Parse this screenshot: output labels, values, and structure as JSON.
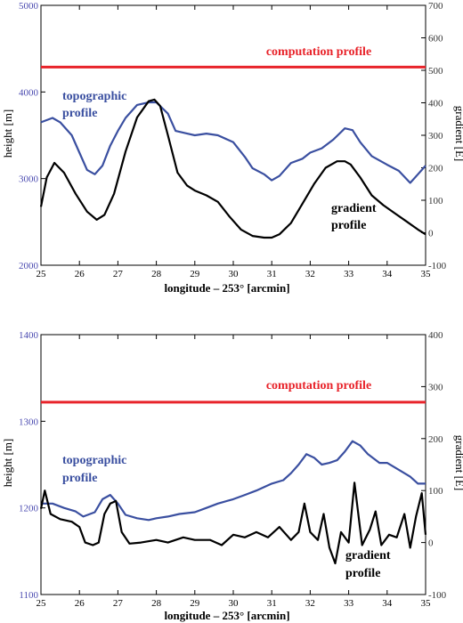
{
  "chart_data": [
    {
      "type": "line",
      "xlabel": "longitude – 253° [arcmin]",
      "ylabel_left": "height [m]",
      "ylabel_right": "gradient [E]",
      "xlim": [
        25,
        35
      ],
      "ylim_left": [
        2000,
        5000
      ],
      "ylim_right": [
        -100,
        700
      ],
      "x_ticks": [
        "25",
        "26",
        "27",
        "28",
        "29",
        "30",
        "31",
        "32",
        "33",
        "34",
        "35"
      ],
      "y_left_ticks": [
        "5000",
        "4000",
        "3000",
        "2000"
      ],
      "y_right_ticks": [
        "700",
        "600",
        "500",
        "400",
        "300",
        "200",
        "100",
        "0",
        "-100"
      ],
      "annotations": {
        "computation": "computation profile",
        "topo_line1": "topographic",
        "topo_line2": "profile",
        "grad_line1": "gradient",
        "grad_line2": "profile"
      },
      "colors": {
        "computation": "#e8232a",
        "topographic": "#3a4fa0",
        "gradient": "#000000"
      },
      "series": [
        {
          "axis": "right",
          "x": [
            25,
            35
          ],
          "values": [
            510,
            510
          ]
        },
        {
          "axis": "left",
          "x": [
            25,
            25.3,
            25.5,
            25.8,
            26.0,
            26.2,
            26.4,
            26.6,
            26.8,
            27.0,
            27.2,
            27.5,
            27.8,
            28.0,
            28.3,
            28.5,
            28.8,
            29.0,
            29.3,
            29.6,
            30.0,
            30.3,
            30.5,
            30.8,
            31.0,
            31.2,
            31.5,
            31.8,
            32.0,
            32.3,
            32.6,
            32.9,
            33.1,
            33.3,
            33.6,
            34.0,
            34.3,
            34.6,
            34.8,
            35.0
          ],
          "values": [
            3650,
            3700,
            3650,
            3500,
            3300,
            3100,
            3050,
            3150,
            3380,
            3550,
            3700,
            3850,
            3880,
            3880,
            3750,
            3550,
            3520,
            3500,
            3520,
            3500,
            3420,
            3250,
            3120,
            3050,
            2980,
            3030,
            3180,
            3230,
            3300,
            3350,
            3450,
            3580,
            3560,
            3420,
            3260,
            3160,
            3090,
            2950,
            3050,
            3150
          ]
        },
        {
          "axis": "right",
          "x": [
            25,
            25.15,
            25.35,
            25.6,
            25.9,
            26.2,
            26.45,
            26.65,
            26.9,
            27.2,
            27.5,
            27.8,
            27.95,
            28.1,
            28.3,
            28.55,
            28.8,
            29.0,
            29.3,
            29.6,
            29.9,
            30.2,
            30.5,
            30.8,
            31.0,
            31.2,
            31.5,
            31.8,
            32.1,
            32.4,
            32.7,
            32.9,
            33.05,
            33.3,
            33.6,
            33.9,
            34.2,
            34.5,
            34.8,
            35.0
          ],
          "values": [
            80,
            170,
            215,
            185,
            120,
            65,
            40,
            55,
            120,
            250,
            355,
            405,
            410,
            390,
            300,
            185,
            145,
            130,
            115,
            95,
            50,
            10,
            -10,
            -15,
            -15,
            -5,
            30,
            90,
            150,
            200,
            220,
            220,
            210,
            170,
            115,
            85,
            60,
            35,
            10,
            -5
          ]
        }
      ]
    },
    {
      "type": "line",
      "xlabel": "longitude – 253° [arcmin]",
      "ylabel_left": "height [m]",
      "ylabel_right": "gradient [E]",
      "xlim": [
        25,
        35
      ],
      "ylim_left": [
        1100,
        1400
      ],
      "ylim_right": [
        -100,
        400
      ],
      "x_ticks": [
        "25",
        "26",
        "27",
        "28",
        "29",
        "30",
        "31",
        "32",
        "33",
        "34",
        "35"
      ],
      "y_left_ticks": [
        "1400",
        "1300",
        "1200",
        "1100"
      ],
      "y_right_ticks": [
        "400",
        "300",
        "200",
        "100",
        "0",
        "-100"
      ],
      "annotations": {
        "computation": "computation profile",
        "topo_line1": "topographic",
        "topo_line2": "profile",
        "grad_line1": "gradient",
        "grad_line2": "profile"
      },
      "colors": {
        "computation": "#e8232a",
        "topographic": "#3a4fa0",
        "gradient": "#000000"
      },
      "series": [
        {
          "axis": "right",
          "x": [
            25,
            35
          ],
          "values": [
            270,
            270
          ]
        },
        {
          "axis": "left",
          "x": [
            25,
            25.3,
            25.6,
            25.9,
            26.1,
            26.4,
            26.6,
            26.8,
            27.0,
            27.2,
            27.5,
            27.8,
            28.0,
            28.3,
            28.6,
            29.0,
            29.3,
            29.6,
            30.0,
            30.3,
            30.6,
            31.0,
            31.3,
            31.5,
            31.7,
            31.9,
            32.1,
            32.3,
            32.5,
            32.7,
            32.9,
            33.1,
            33.3,
            33.5,
            33.8,
            34.0,
            34.3,
            34.6,
            34.8,
            35.0
          ],
          "values": [
            1205,
            1205,
            1200,
            1196,
            1190,
            1195,
            1210,
            1215,
            1205,
            1192,
            1188,
            1186,
            1188,
            1190,
            1193,
            1195,
            1200,
            1205,
            1210,
            1215,
            1220,
            1228,
            1232,
            1240,
            1250,
            1262,
            1258,
            1250,
            1252,
            1255,
            1265,
            1277,
            1272,
            1262,
            1252,
            1252,
            1244,
            1236,
            1228,
            1228
          ]
        },
        {
          "axis": "right",
          "x": [
            25,
            25.1,
            25.25,
            25.5,
            25.8,
            26.0,
            26.15,
            26.35,
            26.5,
            26.65,
            26.8,
            26.95,
            27.1,
            27.3,
            27.6,
            28.0,
            28.3,
            28.7,
            29.0,
            29.4,
            29.7,
            30.0,
            30.3,
            30.6,
            30.9,
            31.2,
            31.5,
            31.7,
            31.85,
            32.0,
            32.2,
            32.35,
            32.5,
            32.65,
            32.8,
            33.0,
            33.15,
            33.35,
            33.55,
            33.7,
            33.85,
            34.05,
            34.25,
            34.45,
            34.6,
            34.75,
            34.9,
            35.0
          ],
          "values": [
            65,
            100,
            55,
            45,
            40,
            30,
            0,
            -5,
            0,
            55,
            75,
            80,
            20,
            -2,
            0,
            5,
            0,
            10,
            5,
            5,
            -5,
            15,
            10,
            20,
            10,
            30,
            5,
            20,
            75,
            20,
            5,
            55,
            -10,
            -40,
            20,
            0,
            115,
            -5,
            25,
            60,
            -5,
            15,
            10,
            55,
            -10,
            50,
            95,
            15
          ]
        }
      ]
    }
  ]
}
